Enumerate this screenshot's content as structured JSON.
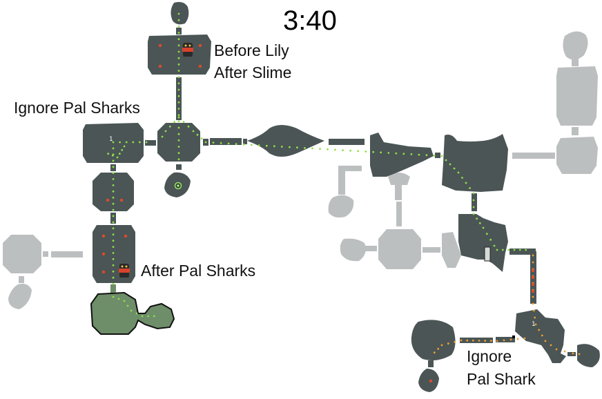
{
  "timer": "3:40",
  "labels": {
    "before_lily": "Before Lily",
    "after_slime": "After Slime",
    "ignore_pal_sharks": "Ignore Pal Sharks",
    "after_pal_sharks": "After Pal Sharks",
    "ignore": "Ignore",
    "pal_shark": "Pal Shark"
  },
  "room_numbers": {
    "left_room": "1",
    "right_room": "1"
  },
  "colors": {
    "explored_room": "#4b5555",
    "unexplored_room": "#bcbfc0",
    "current_room": "#6e8d69",
    "path_dot_green": "#8ee04a",
    "path_dot_orange": "#f0a030",
    "enemy_marker": "#e04a2a"
  },
  "icons": {
    "boss_marker": "pal-shark-icon",
    "savepoint": "save-point-icon",
    "door": "door-icon"
  }
}
